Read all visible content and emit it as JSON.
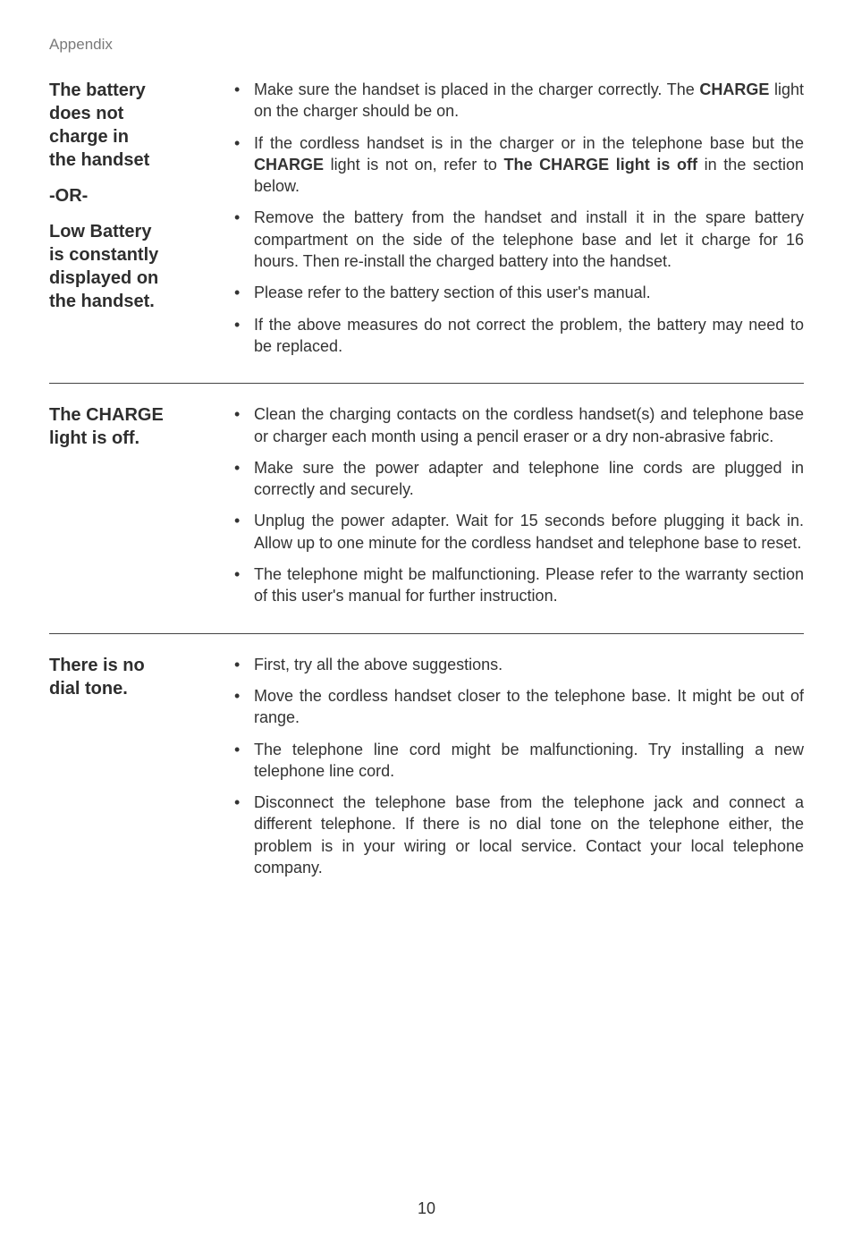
{
  "header": "Appendix",
  "page_number": "10",
  "colors": {
    "text": "#3a3a3a",
    "header_text": "#7a7a7a",
    "bg": "#ffffff",
    "rule": "#444444"
  },
  "typography": {
    "body_fontsize_pt": 14,
    "title_fontsize_pt": 15,
    "header_fontsize_pt": 13,
    "font_family": "Arial"
  },
  "sections": [
    {
      "title_blocks": [
        [
          "The battery",
          "does not",
          "charge in",
          "the handset"
        ],
        [
          "-OR-"
        ],
        [
          "Low Battery",
          "is constantly",
          "displayed on",
          "the handset."
        ]
      ],
      "bullets": [
        [
          {
            "t": "Make sure the handset is placed in the charger correctly. The "
          },
          {
            "t": "CHARGE",
            "b": true
          },
          {
            "t": " light on the charger should be on."
          }
        ],
        [
          {
            "t": "If the cordless handset is in the charger or in the telephone base but the "
          },
          {
            "t": "CHARGE",
            "b": true
          },
          {
            "t": " light is not on, refer to "
          },
          {
            "t": "The CHARGE light is off",
            "b": true
          },
          {
            "t": " in the section below."
          }
        ],
        [
          {
            "t": "Remove the battery from the handset and install it in the spare battery compartment on the side of the telephone base and let it charge for 16 hours. Then re-install the charged battery into the handset."
          }
        ],
        [
          {
            "t": "Please refer to the battery section of this user's manual."
          }
        ],
        [
          {
            "t": "If the above measures do not correct the problem, the battery may need to be replaced."
          }
        ]
      ]
    },
    {
      "title_blocks": [
        [
          "The CHARGE",
          "light is off."
        ]
      ],
      "bullets": [
        [
          {
            "t": "Clean the charging contacts on the cordless handset(s) and telephone base or charger each month using a pencil eraser or a dry non-abrasive fabric."
          }
        ],
        [
          {
            "t": "Make sure the power adapter and telephone line cords are plugged in correctly and securely."
          }
        ],
        [
          {
            "t": "Unplug the power adapter. Wait for 15 seconds before plugging it back in. Allow up to one minute for the cordless handset and telephone base to reset."
          }
        ],
        [
          {
            "t": "The telephone might be malfunctioning. Please refer to the warranty section of this user's manual for further instruction."
          }
        ]
      ]
    },
    {
      "title_blocks": [
        [
          "There is no",
          "dial tone."
        ]
      ],
      "bullets": [
        [
          {
            "t": "First, try all the above suggestions."
          }
        ],
        [
          {
            "t": "Move the cordless handset closer to the telephone base. It might be out of range."
          }
        ],
        [
          {
            "t": "The telephone line cord might be malfunctioning. Try installing a new telephone line cord."
          }
        ],
        [
          {
            "t": "Disconnect the telephone base from the telephone jack and connect a different telephone. If there is no dial tone on the telephone either, the problem is in your wiring or local service. Contact your local telephone company."
          }
        ]
      ]
    }
  ]
}
